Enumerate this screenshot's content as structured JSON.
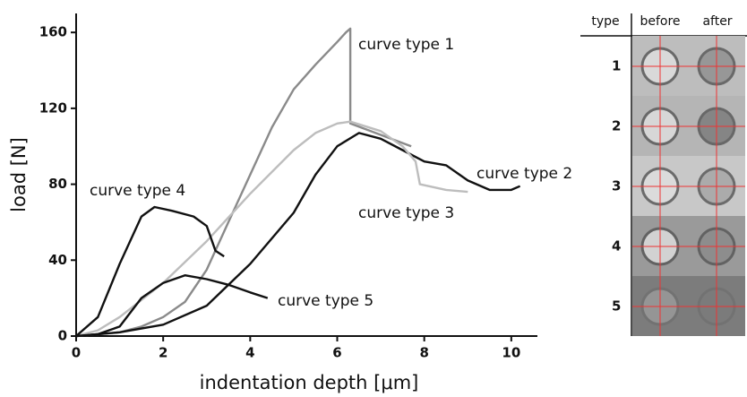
{
  "chart_data": {
    "type": "line",
    "xlabel": "indentation depth [μm]",
    "ylabel": "load [N]",
    "xlim": [
      0,
      10.6
    ],
    "ylim": [
      0,
      170
    ],
    "xticks": [
      0,
      2,
      4,
      6,
      8,
      10
    ],
    "yticks": [
      0,
      40,
      80,
      120,
      160
    ],
    "series": [
      {
        "name": "curve type 1",
        "color": "#8a8a8a",
        "x": [
          0,
          1,
          1.5,
          2,
          2.5,
          3,
          3.5,
          4,
          4.5,
          5,
          5.5,
          6,
          6.2,
          6.3,
          6.3,
          7,
          7.7
        ],
        "values": [
          0,
          2,
          5,
          10,
          18,
          35,
          60,
          85,
          110,
          130,
          143,
          155,
          160,
          162,
          112,
          106,
          100
        ]
      },
      {
        "name": "curve type 2",
        "color": "#111111",
        "x": [
          0,
          1,
          2,
          3,
          4,
          5,
          5.5,
          6,
          6.5,
          7,
          7.5,
          8,
          8.5,
          9,
          9.5,
          10,
          10.2
        ],
        "values": [
          0,
          2,
          6,
          16,
          38,
          65,
          85,
          100,
          107,
          104,
          98,
          92,
          90,
          82,
          77,
          77,
          79
        ]
      },
      {
        "name": "curve type 3",
        "color": "#bdbdbd",
        "x": [
          0,
          0.5,
          1,
          2,
          3,
          4,
          5,
          5.5,
          6,
          6.3,
          7,
          7.5,
          7.8,
          7.9,
          8.5,
          9
        ],
        "values": [
          0,
          3,
          10,
          28,
          50,
          75,
          98,
          107,
          112,
          113,
          108,
          100,
          92,
          80,
          77,
          76
        ]
      },
      {
        "name": "curve type 4",
        "color": "#111111",
        "x": [
          0,
          0.5,
          1,
          1.5,
          1.8,
          2.2,
          2.7,
          3,
          3.2,
          3.4
        ],
        "values": [
          0,
          10,
          38,
          63,
          68,
          66,
          63,
          58,
          45,
          42
        ]
      },
      {
        "name": "curve type 5",
        "color": "#111111",
        "x": [
          0,
          0.5,
          1,
          1.5,
          2,
          2.5,
          3,
          3.5,
          4,
          4.4
        ],
        "values": [
          0,
          1,
          5,
          20,
          28,
          32,
          30,
          27,
          23,
          20
        ]
      }
    ]
  },
  "table": {
    "header": [
      "type",
      "before",
      "after"
    ],
    "rows": [
      "1",
      "2",
      "3",
      "4",
      "5"
    ]
  }
}
